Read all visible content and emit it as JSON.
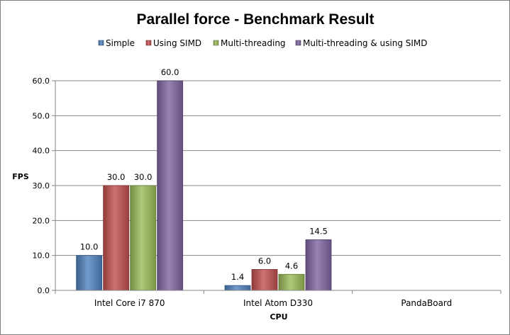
{
  "chart_data": {
    "type": "bar",
    "title": "Parallel force - Benchmark Result",
    "xlabel": "CPU",
    "ylabel": "FPS",
    "categories": [
      "Intel Core i7 870",
      "Intel Atom D330",
      "PandaBoard"
    ],
    "series": [
      {
        "name": "Simple",
        "values": [
          10.0,
          1.4,
          null
        ],
        "labels": [
          "10.0",
          "1.4",
          ""
        ],
        "color": "#4f81bd"
      },
      {
        "name": "Using SIMD",
        "values": [
          30.0,
          6.0,
          null
        ],
        "labels": [
          "30.0",
          "6.0",
          ""
        ],
        "color": "#c0504d"
      },
      {
        "name": "Multi-threading",
        "values": [
          30.0,
          4.6,
          null
        ],
        "labels": [
          "30.0",
          "4.6",
          ""
        ],
        "color": "#9bbb59"
      },
      {
        "name": "Multi-threading & using SIMD",
        "values": [
          60.0,
          14.5,
          null
        ],
        "labels": [
          "60.0",
          "14.5",
          ""
        ],
        "color": "#8064a2"
      }
    ],
    "ylim": [
      0,
      60
    ],
    "yticks": [
      "0.0",
      "10.0",
      "20.0",
      "30.0",
      "40.0",
      "50.0",
      "60.0"
    ],
    "grid": true,
    "legend_position": "top"
  }
}
